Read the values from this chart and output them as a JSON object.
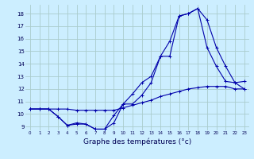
{
  "title": "Graphe des températures (°c)",
  "background_color": "#cceeff",
  "grid_color": "#aacccc",
  "line_color": "#0000aa",
  "xlim": [
    -0.5,
    23.5
  ],
  "ylim": [
    8.7,
    18.7
  ],
  "xticks": [
    0,
    1,
    2,
    3,
    4,
    5,
    6,
    7,
    8,
    9,
    10,
    11,
    12,
    13,
    14,
    15,
    16,
    17,
    18,
    19,
    20,
    21,
    22,
    23
  ],
  "yticks": [
    9,
    10,
    11,
    12,
    13,
    14,
    15,
    16,
    17,
    18
  ],
  "series1_x": [
    0,
    1,
    2,
    3,
    4,
    5,
    6,
    7,
    8,
    9,
    10,
    11,
    12,
    13,
    14,
    15,
    16,
    17,
    18,
    19,
    20,
    21,
    22,
    23
  ],
  "series1_y": [
    10.4,
    10.4,
    10.4,
    10.4,
    10.4,
    10.3,
    10.3,
    10.3,
    10.3,
    10.3,
    10.5,
    10.7,
    10.9,
    11.1,
    11.4,
    11.6,
    11.8,
    12.0,
    12.1,
    12.2,
    12.2,
    12.2,
    12.0,
    12.0
  ],
  "series2_x": [
    0,
    1,
    2,
    3,
    4,
    5,
    6,
    7,
    8,
    9,
    10,
    11,
    12,
    13,
    14,
    15,
    16,
    17,
    18,
    19,
    20,
    21,
    22,
    23
  ],
  "series2_y": [
    10.4,
    10.4,
    10.4,
    9.8,
    9.1,
    9.2,
    9.2,
    8.8,
    8.8,
    9.9,
    10.8,
    11.6,
    12.5,
    13.0,
    14.6,
    15.8,
    17.8,
    18.0,
    18.4,
    15.3,
    13.8,
    12.6,
    12.5,
    12.0
  ],
  "series3_x": [
    0,
    1,
    2,
    3,
    4,
    5,
    6,
    7,
    8,
    9,
    10,
    11,
    12,
    13,
    14,
    15,
    16,
    17,
    18,
    19,
    20,
    21,
    22,
    23
  ],
  "series3_y": [
    10.4,
    10.4,
    10.4,
    9.8,
    9.1,
    9.3,
    9.2,
    8.8,
    8.8,
    9.3,
    10.8,
    10.8,
    11.5,
    12.5,
    14.6,
    14.6,
    17.8,
    18.0,
    18.4,
    17.5,
    15.3,
    13.8,
    12.5,
    12.6
  ]
}
